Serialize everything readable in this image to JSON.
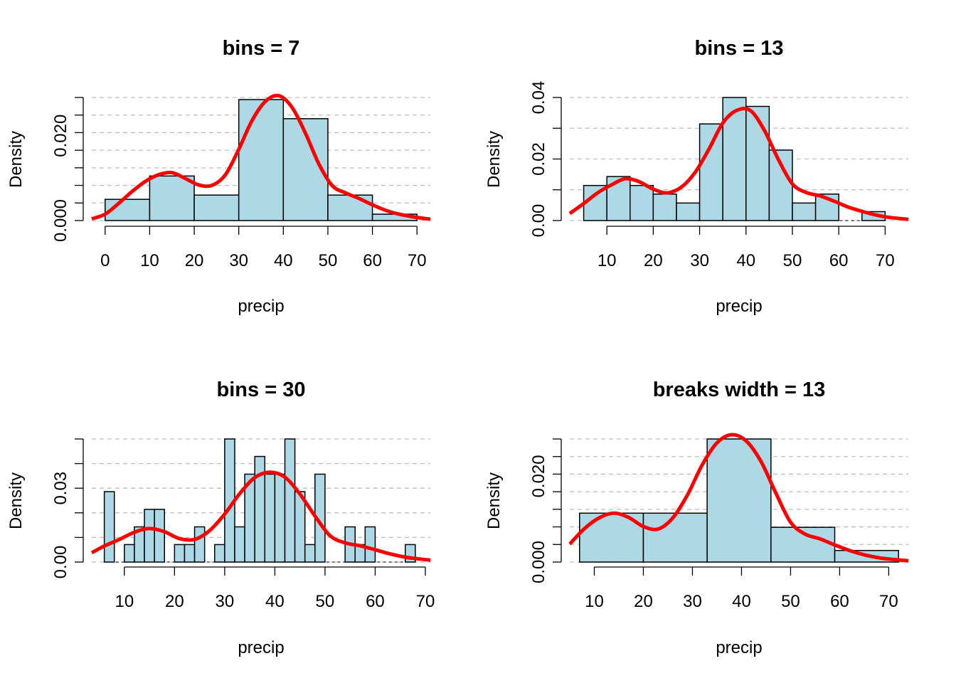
{
  "chart_data": [
    {
      "type": "bar",
      "title": "bins = 7",
      "xlabel": "precip",
      "ylabel": "Density",
      "xlim": [
        -3,
        73
      ],
      "ylim": [
        0,
        0.029
      ],
      "xticks": [
        "0",
        "10",
        "20",
        "30",
        "40",
        "50",
        "60",
        "70"
      ],
      "yticks": [
        "0.000",
        "0.020"
      ],
      "grid": true,
      "bins": [
        {
          "from": 0,
          "to": 10,
          "density": 0.005
        },
        {
          "from": 10,
          "to": 20,
          "density": 0.0105
        },
        {
          "from": 20,
          "to": 30,
          "density": 0.006
        },
        {
          "from": 30,
          "to": 40,
          "density": 0.0285
        },
        {
          "from": 40,
          "to": 50,
          "density": 0.024
        },
        {
          "from": 50,
          "to": 60,
          "density": 0.006
        },
        {
          "from": 60,
          "to": 70,
          "density": 0.0015
        }
      ],
      "density_curve": {
        "x": [
          -3,
          0,
          3,
          6,
          9,
          12,
          15,
          18,
          21,
          24,
          27,
          30,
          33,
          36,
          39,
          42,
          45,
          48,
          51,
          54,
          57,
          60,
          63,
          66,
          69,
          73
        ],
        "y": [
          0.0004,
          0.0015,
          0.004,
          0.0068,
          0.0092,
          0.0108,
          0.0113,
          0.0099,
          0.0084,
          0.0083,
          0.0108,
          0.0168,
          0.0236,
          0.0281,
          0.0294,
          0.0266,
          0.0205,
          0.0133,
          0.0082,
          0.0065,
          0.0052,
          0.0037,
          0.0024,
          0.0015,
          0.0009,
          0.0003
        ]
      }
    },
    {
      "type": "bar",
      "title": "bins = 13",
      "xlabel": "precip",
      "ylabel": "Density",
      "xlim": [
        2,
        75
      ],
      "ylim": [
        0,
        0.04
      ],
      "xticks": [
        "10",
        "20",
        "30",
        "40",
        "50",
        "60",
        "70"
      ],
      "yticks": [
        "0.00",
        "0.02",
        "0.04"
      ],
      "grid": true,
      "bins": [
        {
          "from": 5,
          "to": 10,
          "density": 0.0114
        },
        {
          "from": 10,
          "to": 15,
          "density": 0.0143
        },
        {
          "from": 15,
          "to": 20,
          "density": 0.0114
        },
        {
          "from": 20,
          "to": 25,
          "density": 0.0086
        },
        {
          "from": 25,
          "to": 30,
          "density": 0.0057
        },
        {
          "from": 30,
          "to": 35,
          "density": 0.0314
        },
        {
          "from": 35,
          "to": 40,
          "density": 0.04
        },
        {
          "from": 40,
          "to": 45,
          "density": 0.0371
        },
        {
          "from": 45,
          "to": 50,
          "density": 0.0229
        },
        {
          "from": 50,
          "to": 55,
          "density": 0.0057
        },
        {
          "from": 55,
          "to": 60,
          "density": 0.0086
        },
        {
          "from": 60,
          "to": 65,
          "density": 0
        },
        {
          "from": 65,
          "to": 70,
          "density": 0.0029
        }
      ],
      "density_curve": {
        "x": [
          2,
          5,
          8,
          11,
          14,
          17,
          20,
          23,
          26,
          29,
          32,
          35,
          38,
          41,
          44,
          47,
          50,
          53,
          56,
          59,
          62,
          65,
          68,
          71,
          75
        ],
        "y": [
          0.0023,
          0.0055,
          0.009,
          0.0116,
          0.0136,
          0.0126,
          0.0102,
          0.009,
          0.0108,
          0.0156,
          0.0232,
          0.0317,
          0.0358,
          0.0357,
          0.0292,
          0.0198,
          0.0119,
          0.0091,
          0.008,
          0.0063,
          0.0044,
          0.003,
          0.0018,
          0.001,
          0.0004
        ]
      }
    },
    {
      "type": "bar",
      "title": "bins = 30",
      "xlabel": "precip",
      "ylabel": "Density",
      "xlim": [
        3.5,
        71
      ],
      "ylim": [
        0,
        0.05
      ],
      "xticks": [
        "10",
        "20",
        "30",
        "40",
        "50",
        "60",
        "70"
      ],
      "yticks": [
        "0.00",
        "0.03"
      ],
      "grid": true,
      "bins": [
        {
          "from": 6,
          "to": 8,
          "density": 0.0286
        },
        {
          "from": 8,
          "to": 10,
          "density": 0
        },
        {
          "from": 10,
          "to": 12,
          "density": 0.0071
        },
        {
          "from": 12,
          "to": 14,
          "density": 0.0143
        },
        {
          "from": 14,
          "to": 16,
          "density": 0.0214
        },
        {
          "from": 16,
          "to": 18,
          "density": 0.0214
        },
        {
          "from": 18,
          "to": 20,
          "density": 0
        },
        {
          "from": 20,
          "to": 22,
          "density": 0.0071
        },
        {
          "from": 22,
          "to": 24,
          "density": 0.0071
        },
        {
          "from": 24,
          "to": 26,
          "density": 0.0143
        },
        {
          "from": 26,
          "to": 28,
          "density": 0
        },
        {
          "from": 28,
          "to": 30,
          "density": 0.0071
        },
        {
          "from": 30,
          "to": 32,
          "density": 0.05
        },
        {
          "from": 32,
          "to": 34,
          "density": 0.0143
        },
        {
          "from": 34,
          "to": 36,
          "density": 0.0357
        },
        {
          "from": 36,
          "to": 38,
          "density": 0.0429
        },
        {
          "from": 38,
          "to": 40,
          "density": 0.0357
        },
        {
          "from": 40,
          "to": 42,
          "density": 0.0357
        },
        {
          "from": 42,
          "to": 44,
          "density": 0.05
        },
        {
          "from": 44,
          "to": 46,
          "density": 0.0286
        },
        {
          "from": 46,
          "to": 48,
          "density": 0.0071
        },
        {
          "from": 48,
          "to": 50,
          "density": 0.0357
        },
        {
          "from": 50,
          "to": 52,
          "density": 0
        },
        {
          "from": 52,
          "to": 54,
          "density": 0
        },
        {
          "from": 54,
          "to": 56,
          "density": 0.0143
        },
        {
          "from": 56,
          "to": 58,
          "density": 0.0071
        },
        {
          "from": 58,
          "to": 60,
          "density": 0.0143
        },
        {
          "from": 60,
          "to": 62,
          "density": 0
        },
        {
          "from": 62,
          "to": 64,
          "density": 0
        },
        {
          "from": 64,
          "to": 66,
          "density": 0
        },
        {
          "from": 66,
          "to": 68,
          "density": 0.0071
        }
      ],
      "density_curve": {
        "x": [
          3.5,
          6,
          9,
          12,
          15,
          18,
          21,
          24,
          27,
          30,
          33,
          36,
          39,
          42,
          45,
          48,
          51,
          54,
          57,
          60,
          63,
          66,
          69,
          71
        ],
        "y": [
          0.0038,
          0.0065,
          0.0092,
          0.0121,
          0.0136,
          0.0123,
          0.0095,
          0.0092,
          0.0128,
          0.0195,
          0.0278,
          0.0343,
          0.0365,
          0.0345,
          0.0276,
          0.0187,
          0.0107,
          0.0078,
          0.0066,
          0.005,
          0.0033,
          0.002,
          0.0012,
          0.0008
        ]
      }
    },
    {
      "type": "bar",
      "title": "breaks width = 13",
      "xlabel": "precip",
      "ylabel": "Density",
      "xlim": [
        5,
        74
      ],
      "ylim": [
        0,
        0.0287
      ],
      "xticks": [
        "10",
        "20",
        "30",
        "40",
        "50",
        "60",
        "70"
      ],
      "yticks": [
        "0.000",
        "0.020"
      ],
      "grid": true,
      "bins": [
        {
          "from": 7,
          "to": 20,
          "density": 0.0114
        },
        {
          "from": 20,
          "to": 33,
          "density": 0.0114
        },
        {
          "from": 33,
          "to": 46,
          "density": 0.0287
        },
        {
          "from": 46,
          "to": 59,
          "density": 0.0081
        },
        {
          "from": 59,
          "to": 72,
          "density": 0.0027
        }
      ],
      "density_curve": {
        "x": [
          5,
          8,
          11,
          14,
          17,
          20,
          23,
          26,
          29,
          32,
          35,
          38,
          41,
          44,
          47,
          50,
          53,
          56,
          59,
          62,
          65,
          68,
          71,
          74
        ],
        "y": [
          0.0042,
          0.0078,
          0.0103,
          0.0114,
          0.0104,
          0.0083,
          0.0077,
          0.0103,
          0.0157,
          0.0227,
          0.0278,
          0.0297,
          0.0282,
          0.0234,
          0.0161,
          0.0093,
          0.0065,
          0.0054,
          0.004,
          0.0027,
          0.0017,
          0.001,
          0.0006,
          0.0003
        ]
      }
    }
  ]
}
